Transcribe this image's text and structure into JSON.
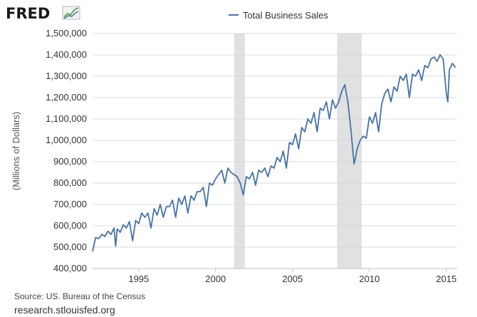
{
  "logo": {
    "text": "FRED",
    "icon": "fred-chart-logo-icon"
  },
  "legend": {
    "label": "Total Business Sales"
  },
  "footer": {
    "source": "Source: US. Bureau of the Census",
    "site": "research.stlouisfed.org"
  },
  "colors": {
    "series": "#4572a7",
    "recession": "#e1e1e1",
    "grid": "#d8d8d8"
  },
  "chart_data": {
    "type": "line",
    "title": "",
    "xlabel": "",
    "ylabel": "(Millions of Dollars)",
    "xlim": [
      1992.0,
      2015.7
    ],
    "ylim": [
      400000,
      1500000
    ],
    "y_ticks": [
      400000,
      500000,
      600000,
      700000,
      800000,
      900000,
      1000000,
      1100000,
      1200000,
      1300000,
      1400000,
      1500000
    ],
    "y_tick_labels": [
      "400,000",
      "500,000",
      "600,000",
      "700,000",
      "800,000",
      "900,000",
      "1,000,000",
      "1,100,000",
      "1,200,000",
      "1,300,000",
      "1,400,000",
      "1,500,000"
    ],
    "x_ticks": [
      1995,
      2000,
      2005,
      2010,
      2015
    ],
    "x_tick_labels": [
      "1995",
      "2000",
      "2005",
      "2010",
      "2015"
    ],
    "grid": "horizontal",
    "legend_position": "top-center",
    "recessions": [
      [
        2001.2,
        2001.9
      ],
      [
        2007.9,
        2009.5
      ]
    ],
    "series": [
      {
        "name": "Total Business Sales",
        "x": [
          1992.0,
          1992.2,
          1992.4,
          1992.6,
          1992.8,
          1993.0,
          1993.2,
          1993.4,
          1993.5,
          1993.6,
          1993.8,
          1994.0,
          1994.2,
          1994.4,
          1994.6,
          1994.8,
          1995.0,
          1995.2,
          1995.4,
          1995.6,
          1995.8,
          1996.0,
          1996.2,
          1996.4,
          1996.6,
          1996.8,
          1997.0,
          1997.2,
          1997.4,
          1997.6,
          1997.8,
          1998.0,
          1998.2,
          1998.4,
          1998.6,
          1998.8,
          1999.0,
          1999.2,
          1999.4,
          1999.6,
          1999.8,
          2000.0,
          2000.2,
          2000.4,
          2000.6,
          2000.8,
          2001.0,
          2001.2,
          2001.4,
          2001.6,
          2001.8,
          2002.0,
          2002.2,
          2002.4,
          2002.6,
          2002.8,
          2003.0,
          2003.2,
          2003.4,
          2003.6,
          2003.8,
          2004.0,
          2004.2,
          2004.4,
          2004.6,
          2004.8,
          2005.0,
          2005.2,
          2005.4,
          2005.6,
          2005.8,
          2006.0,
          2006.2,
          2006.4,
          2006.6,
          2006.8,
          2007.0,
          2007.2,
          2007.4,
          2007.6,
          2007.8,
          2008.0,
          2008.2,
          2008.4,
          2008.5,
          2008.6,
          2008.8,
          2009.0,
          2009.1,
          2009.2,
          2009.4,
          2009.6,
          2009.8,
          2010.0,
          2010.2,
          2010.4,
          2010.6,
          2010.8,
          2011.0,
          2011.2,
          2011.4,
          2011.6,
          2011.8,
          2012.0,
          2012.2,
          2012.4,
          2012.6,
          2012.8,
          2013.0,
          2013.2,
          2013.4,
          2013.6,
          2013.8,
          2014.0,
          2014.2,
          2014.4,
          2014.6,
          2014.8,
          2015.0,
          2015.1,
          2015.2,
          2015.4,
          2015.6
        ],
        "y": [
          480000,
          545000,
          540000,
          560000,
          550000,
          575000,
          560000,
          590000,
          505000,
          585000,
          570000,
          605000,
          590000,
          620000,
          530000,
          625000,
          610000,
          660000,
          640000,
          660000,
          590000,
          680000,
          650000,
          700000,
          640000,
          690000,
          690000,
          720000,
          640000,
          730000,
          700000,
          740000,
          660000,
          740000,
          720000,
          760000,
          760000,
          780000,
          690000,
          800000,
          790000,
          820000,
          840000,
          860000,
          800000,
          870000,
          850000,
          840000,
          830000,
          800000,
          745000,
          830000,
          820000,
          850000,
          790000,
          860000,
          850000,
          870000,
          830000,
          880000,
          870000,
          920000,
          900000,
          950000,
          870000,
          990000,
          980000,
          1030000,
          960000,
          1060000,
          1040000,
          1100000,
          1080000,
          1130000,
          1040000,
          1150000,
          1140000,
          1180000,
          1100000,
          1190000,
          1150000,
          1180000,
          1230000,
          1260000,
          1220000,
          1180000,
          1050000,
          890000,
          920000,
          960000,
          1000000,
          1020000,
          1010000,
          1110000,
          1080000,
          1130000,
          1040000,
          1170000,
          1220000,
          1240000,
          1180000,
          1250000,
          1230000,
          1300000,
          1280000,
          1310000,
          1200000,
          1310000,
          1300000,
          1330000,
          1280000,
          1350000,
          1340000,
          1380000,
          1390000,
          1370000,
          1400000,
          1380000,
          1220000,
          1180000,
          1330000,
          1360000,
          1340000
        ]
      }
    ]
  }
}
